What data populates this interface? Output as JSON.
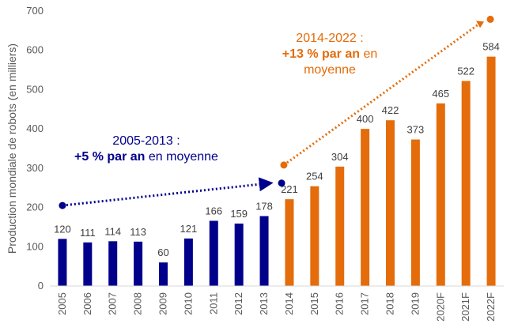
{
  "chart_data": {
    "type": "bar",
    "ylabel": "Production mondiale de robots (en milliers)",
    "ylim": [
      0,
      700
    ],
    "yticks": [
      0,
      100,
      200,
      300,
      400,
      500,
      600,
      700
    ],
    "grid": false,
    "categories": [
      "2005",
      "2006",
      "2007",
      "2008",
      "2009",
      "2010",
      "2011",
      "2012",
      "2013",
      "2014",
      "2015",
      "2016",
      "2017",
      "2018",
      "2019",
      "2020F",
      "2021F",
      "2022F"
    ],
    "values": [
      120,
      111,
      114,
      113,
      60,
      121,
      166,
      159,
      178,
      221,
      254,
      304,
      400,
      422,
      373,
      465,
      522,
      584
    ],
    "colors": {
      "period_1": "#00008B",
      "period_2": "#E46C0A"
    },
    "period_1_count": 9,
    "annotations": [
      {
        "line1": "2005-2013 :",
        "bold": "+5 % par an",
        "rest": " en moyenne",
        "color": "#00008B",
        "trend_from": {
          "x": "2005",
          "y": 205
        },
        "trend_to": {
          "x": "2013",
          "y": 262
        }
      },
      {
        "line1": "2014-2022 :",
        "bold": "+13 % par an",
        "rest": " en",
        "line3": "moyenne",
        "color": "#E46C0A",
        "trend_from": {
          "x": "2014",
          "y": 308
        },
        "trend_to": {
          "x": "2022F",
          "y": 677
        }
      }
    ]
  }
}
